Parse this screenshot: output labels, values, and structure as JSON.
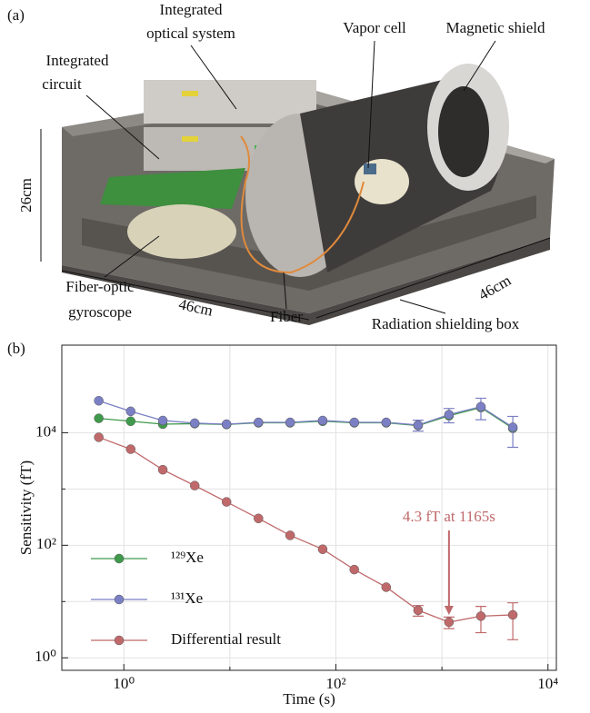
{
  "panel_labels": [
    "(a)",
    "(b)"
  ],
  "panel_a": {
    "callouts": [
      {
        "lines": [
          "Integrated",
          "optical system"
        ]
      },
      {
        "lines": [
          "Integrated",
          "circuit"
        ]
      },
      {
        "lines": [
          "Vapor cell"
        ]
      },
      {
        "lines": [
          "Magnetic shield"
        ]
      },
      {
        "lines": [
          "Fiber-optic",
          "gyroscope"
        ]
      },
      {
        "lines": [
          "Fiber"
        ]
      },
      {
        "lines": [
          "Radiation shielding box"
        ]
      }
    ],
    "dimensions": [
      "26cm",
      "46cm",
      "46cm"
    ]
  },
  "chart_data": {
    "type": "line",
    "xlabel": "Time (s)",
    "ylabel": "Sensitivity (fT)",
    "log_x": true,
    "log_y": true,
    "grid": true,
    "legend": "lower left",
    "xlim": [
      0.26,
      12000
    ],
    "ylim": [
      0.6,
      360000
    ],
    "xticks": [
      {
        "value": 1,
        "label": "10⁰"
      },
      {
        "value": 100,
        "label": "10²"
      },
      {
        "value": 10000,
        "label": "10⁴"
      }
    ],
    "xminorticks": [
      10,
      1000
    ],
    "yticks": [
      {
        "value": 1,
        "label": "10⁰"
      },
      {
        "value": 100,
        "label": "10²"
      },
      {
        "value": 10000,
        "label": "10⁴"
      }
    ],
    "yminorticks": [
      10,
      1000
    ],
    "x": [
      0.58,
      1.16,
      2.33,
      4.66,
      9.3,
      18.6,
      37,
      75,
      149,
      298,
      596,
      1165,
      2330,
      4660
    ],
    "series": [
      {
        "name": "¹²⁹Xe",
        "color": "#3f9a4c",
        "values": [
          18000,
          16000,
          14200,
          14500,
          14000,
          15000,
          15000,
          16000,
          15000,
          15000,
          13400,
          20000,
          28000,
          12000
        ],
        "errors": [
          null,
          null,
          null,
          null,
          null,
          null,
          null,
          null,
          null,
          null,
          null,
          null,
          null,
          null
        ]
      },
      {
        "name": "¹³¹Xe",
        "color": "#7b7fc4",
        "values": [
          37000,
          24000,
          16500,
          14800,
          14200,
          15300,
          15300,
          16500,
          15300,
          15300,
          13700,
          21000,
          29000,
          12500
        ],
        "errors": [
          null,
          null,
          null,
          null,
          null,
          null,
          null,
          null,
          null,
          null,
          3000,
          6000,
          12000,
          7000
        ]
      },
      {
        "name": "Differential result",
        "color": "#c0696b",
        "values": [
          8300,
          5100,
          2200,
          1150,
          590,
          300,
          150,
          85,
          37,
          18,
          7,
          4.3,
          5.5,
          5.8
        ],
        "errors": [
          null,
          null,
          null,
          null,
          null,
          null,
          null,
          null,
          null,
          null,
          1.5,
          1,
          2.7,
          3.7
        ]
      }
    ],
    "annotation": "4.3 fT at 1165s"
  }
}
